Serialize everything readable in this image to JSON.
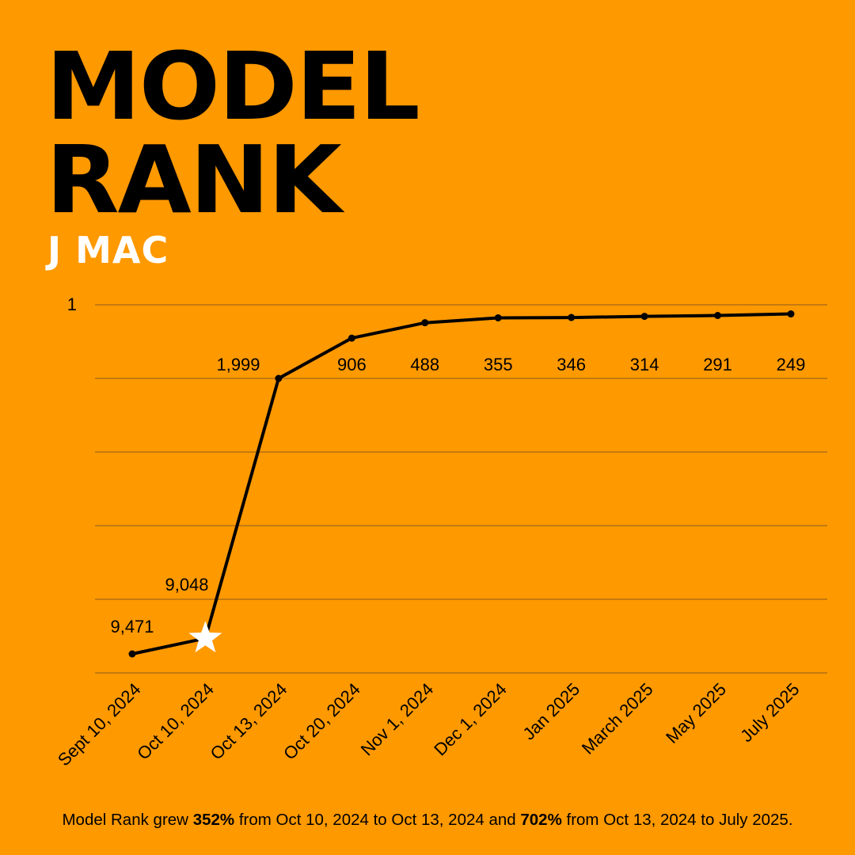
{
  "title": {
    "line1": "MODEL",
    "line2": "RANK"
  },
  "subtitle": "J MAC",
  "colors": {
    "background": "#FF9900",
    "line": "#000000",
    "grid": "#8A5A1E",
    "star": "#FFFFFF",
    "subtitle": "#FFFFFF"
  },
  "chart_data": {
    "type": "line",
    "categories": [
      "Sept 10, 2024",
      "Oct 10, 2024",
      "Oct 13, 2024",
      "Oct 20, 2024",
      "Nov 1, 2024",
      "Dec 1, 2024",
      "Jan 2025",
      "March 2025",
      "May 2025",
      "July 2025"
    ],
    "values": [
      9471,
      9048,
      1999,
      906,
      488,
      355,
      346,
      314,
      291,
      249
    ],
    "value_labels": [
      "9,471",
      "9,048",
      "1,999",
      "906",
      "488",
      "355",
      "346",
      "314",
      "291",
      "249"
    ],
    "y_tick_labels": [
      "1"
    ],
    "y_axis_reversed": true,
    "gridlines": true,
    "highlighted_point": {
      "category": "Oct 10, 2024",
      "marker": "star"
    }
  },
  "caption": {
    "part1": "Model Rank grew ",
    "pct1": "352%",
    "part2": " from Oct 10, 2024 to Oct 13, 2024 and ",
    "pct2": "702%",
    "part3": " from Oct 13, 2024 to July 2025."
  }
}
